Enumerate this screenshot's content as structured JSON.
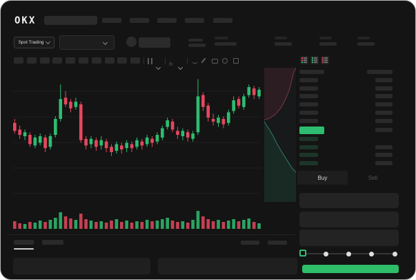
{
  "window_title": "OKX Spot Trading",
  "colors": {
    "background": "#141414",
    "panel": "#1f1f1f",
    "skeleton": "#2a2a2a",
    "green": "#2ebd70",
    "red": "#e5485e",
    "buy_button_green": "#2ebd69",
    "text": "#e6e6e6",
    "sell_dim_text": "#4e5a52"
  },
  "header": {
    "logo": "OKX",
    "search_placeholder_skeleton": true,
    "nav_skeleton_count": 5
  },
  "subheader": {
    "market_selector_label": "Spot Trading",
    "pair_dropdown_skeleton": true,
    "stat_group_count": 4
  },
  "chart_toolbar": {
    "timeframe_skeleton_count": 10,
    "icons": [
      "candle-type-icon",
      "chevron-down-icon",
      "indicators-icon",
      "chevron-down-icon",
      "line-tool-icon",
      "draw-icon",
      "camera-icon",
      "replay-icon",
      "fullscreen-icon"
    ]
  },
  "chart_data": [
    {
      "type": "candlestick",
      "title": "",
      "xlabel": "",
      "ylabel": "",
      "ylim": [
        0,
        100
      ],
      "grid": "horizontal-faint",
      "colors": {
        "up": "#2ebd70",
        "down": "#e5485e"
      },
      "candles_ohlc": [
        [
          60,
          63,
          52,
          54
        ],
        [
          55,
          58,
          48,
          51
        ],
        [
          50,
          55,
          47,
          53
        ],
        [
          51,
          53,
          42,
          44
        ],
        [
          43,
          51,
          41,
          49
        ],
        [
          45,
          52,
          43,
          50
        ],
        [
          49,
          51,
          38,
          41
        ],
        [
          42,
          52,
          40,
          50
        ],
        [
          51,
          65,
          49,
          63
        ],
        [
          63,
          89,
          61,
          78
        ],
        [
          79,
          84,
          72,
          74
        ],
        [
          76,
          78,
          68,
          71
        ],
        [
          72,
          79,
          70,
          76
        ],
        [
          74,
          76,
          45,
          47
        ],
        [
          48,
          50,
          40,
          43
        ],
        [
          44,
          50,
          41,
          48
        ],
        [
          47,
          49,
          39,
          42
        ],
        [
          43,
          50,
          40,
          47
        ],
        [
          46,
          48,
          38,
          41
        ],
        [
          42,
          44,
          35,
          38
        ],
        [
          39,
          46,
          37,
          44
        ],
        [
          43,
          45,
          37,
          40
        ],
        [
          41,
          47,
          38,
          45
        ],
        [
          44,
          46,
          38,
          41
        ],
        [
          42,
          49,
          40,
          47
        ],
        [
          46,
          48,
          40,
          43
        ],
        [
          44,
          51,
          42,
          49
        ],
        [
          48,
          50,
          42,
          45
        ],
        [
          46,
          53,
          44,
          51
        ],
        [
          49,
          58,
          47,
          56
        ],
        [
          57,
          64,
          55,
          62
        ],
        [
          61,
          63,
          53,
          55
        ],
        [
          54,
          57,
          48,
          51
        ],
        [
          50,
          56,
          47,
          54
        ],
        [
          53,
          55,
          46,
          49
        ],
        [
          48,
          54,
          46,
          52
        ],
        [
          53,
          93,
          51,
          80
        ],
        [
          81,
          83,
          69,
          72
        ],
        [
          73,
          75,
          61,
          64
        ],
        [
          63,
          67,
          58,
          61
        ],
        [
          60,
          66,
          57,
          64
        ],
        [
          63,
          65,
          56,
          59
        ],
        [
          60,
          70,
          58,
          68
        ],
        [
          69,
          80,
          67,
          77
        ],
        [
          78,
          80,
          71,
          73
        ],
        [
          72,
          82,
          70,
          80
        ],
        [
          81,
          89,
          79,
          87
        ],
        [
          86,
          88,
          78,
          81
        ],
        [
          80,
          87,
          78,
          85
        ]
      ]
    },
    {
      "type": "bar",
      "title": "volume",
      "values": [
        11,
        8,
        7,
        10,
        9,
        12,
        10,
        13,
        16,
        24,
        18,
        15,
        13,
        22,
        14,
        12,
        10,
        11,
        9,
        12,
        14,
        10,
        12,
        9,
        11,
        10,
        13,
        11,
        12,
        14,
        16,
        12,
        10,
        11,
        9,
        13,
        26,
        18,
        14,
        11,
        13,
        10,
        12,
        14,
        11,
        13,
        15,
        10,
        8
      ],
      "color_rule": "follows candle direction"
    },
    {
      "type": "area",
      "title": "depth",
      "orientation": "vertical",
      "legend_position": "none",
      "series": [
        {
          "name": "asks",
          "line_color": "#7a3a42",
          "fill_color": "rgba(229,72,94,0.10)",
          "points": [
            [
              1,
              0
            ],
            [
              0.92,
              0.04
            ],
            [
              0.86,
              0.1
            ],
            [
              0.78,
              0.17
            ],
            [
              0.66,
              0.24
            ],
            [
              0.52,
              0.3
            ],
            [
              0.36,
              0.345
            ],
            [
              0.18,
              0.375
            ],
            [
              0.06,
              0.385
            ],
            [
              0,
              0.39
            ]
          ]
        },
        {
          "name": "bids",
          "line_color": "#2f7d68",
          "fill_color": "rgba(46,189,112,0.10)",
          "points": [
            [
              0,
              0.4
            ],
            [
              0.06,
              0.425
            ],
            [
              0.16,
              0.46
            ],
            [
              0.28,
              0.51
            ],
            [
              0.4,
              0.565
            ],
            [
              0.52,
              0.615
            ],
            [
              0.64,
              0.66
            ],
            [
              0.76,
              0.705
            ],
            [
              0.88,
              0.75
            ],
            [
              1,
              0.78
            ]
          ]
        }
      ]
    }
  ],
  "orderbook": {
    "view_toggles": [
      {
        "name": "combined-view",
        "row_colors": [
          "#e5485e",
          "#e5485e",
          "#2ebd70",
          "#2ebd70"
        ]
      },
      {
        "name": "bids-view",
        "row_colors": [
          "#2ebd70",
          "#2ebd70",
          "#2ebd70",
          "#2ebd70"
        ]
      },
      {
        "name": "asks-view",
        "row_colors": [
          "#e5485e",
          "#e5485e",
          "#e5485e",
          "#e5485e"
        ]
      }
    ],
    "ask_row_count": 6,
    "bid_row_count": 4,
    "bid_rows_with_right_value": 3,
    "last_price_highlight_color": "#2ebd70"
  },
  "trade_panel": {
    "tabs": [
      {
        "label": "Buy"
      },
      {
        "label": "Sell"
      }
    ],
    "active_tab": "Buy",
    "field_count": 3,
    "slider_steps": 5,
    "slider_value_index": 0
  },
  "bottom_bar": {
    "tab_skeleton_count": 2,
    "active_tab_index": 0,
    "right_skeleton_count": 2,
    "panel_count": 2
  }
}
